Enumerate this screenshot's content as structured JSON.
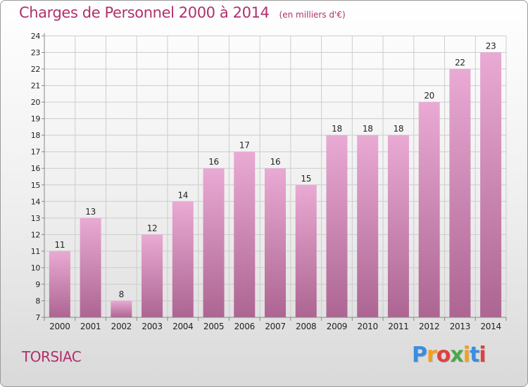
{
  "header": {
    "title": "Charges de Personnel 2000 à 2014",
    "subtitle": "(en milliers d'€)"
  },
  "footer": {
    "commune": "TORSIAC",
    "logo": "Proxiti"
  },
  "colors": {
    "title": "#b0306e",
    "bar_top": "#e9aad4",
    "bar_bottom": "#ad6592",
    "grid": "#cccccc",
    "axis": "#888888",
    "logo_letters": [
      "#3a8ee0",
      "#f0a020",
      "#e04040",
      "#4aa84a",
      "#f0a020",
      "#3a8ee0",
      "#e04040"
    ]
  },
  "chart_data": {
    "type": "bar",
    "title": "Charges de Personnel 2000 à 2014",
    "subtitle": "(en milliers d'€)",
    "xlabel": "",
    "ylabel": "",
    "categories": [
      "2000",
      "2001",
      "2002",
      "2003",
      "2004",
      "2005",
      "2006",
      "2007",
      "2008",
      "2009",
      "2010",
      "2011",
      "2012",
      "2013",
      "2014"
    ],
    "values": [
      11,
      13,
      8,
      12,
      14,
      16,
      17,
      16,
      15,
      18,
      18,
      18,
      20,
      22,
      23
    ],
    "ylim": [
      7,
      24
    ],
    "yticks": [
      7,
      8,
      9,
      10,
      11,
      12,
      13,
      14,
      15,
      16,
      17,
      18,
      19,
      20,
      21,
      22,
      23,
      24
    ],
    "grid": true,
    "legend": "none"
  }
}
